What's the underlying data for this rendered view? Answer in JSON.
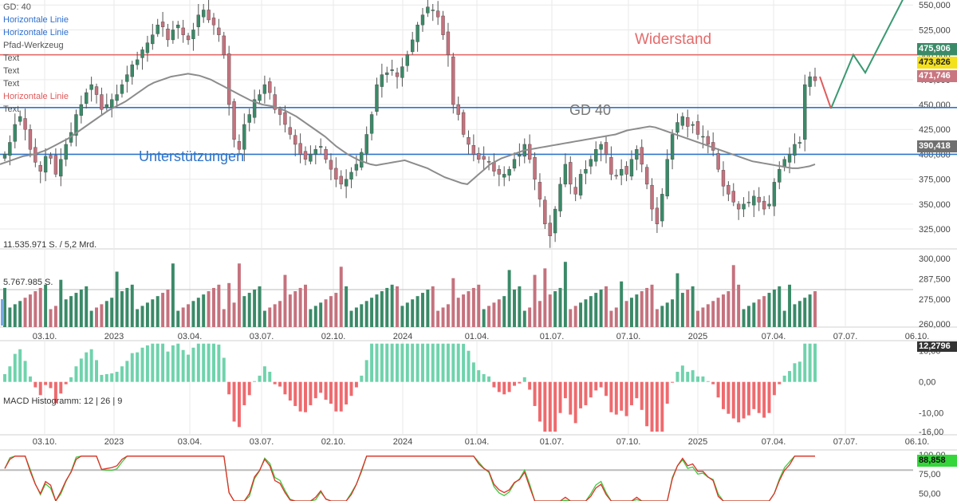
{
  "colors": {
    "up": "#3a8a68",
    "down": "#c5727e",
    "wick": "#555555",
    "support": "#2f74c9",
    "resistance": "#e46b6b",
    "ma": "#8c8c8c",
    "macd_pos": "#6fd3ac",
    "macd_neg": "#ee6a6e",
    "stoch_k": "#e0302a",
    "stoch_d": "#3ec93e",
    "path_red": "#e05c5c",
    "path_green": "#3a9a72",
    "grid": "#e9e9e9"
  },
  "legend": {
    "gd": "GD: 40",
    "items": [
      {
        "label": "Horizontale Linie",
        "color": "blue"
      },
      {
        "label": "Horizontale Linie",
        "color": "blue"
      },
      {
        "label": "Pfad-Werkzeug",
        "color": "gray"
      },
      {
        "label": "Text",
        "color": "gray"
      },
      {
        "label": "Text",
        "color": "gray"
      },
      {
        "label": "Text",
        "color": "gray"
      },
      {
        "label": "Horizontale Linie",
        "color": "red"
      },
      {
        "label": "Text",
        "color": "gray"
      }
    ]
  },
  "annotations": {
    "widerstand": "Widerstand",
    "unterstuetzungen": "Unterstützungen",
    "gd40": "GD 40"
  },
  "volume_panel": {
    "header": "11.535.971 S. / 5,2 Mrd.",
    "avg_label": "5.767.985 S."
  },
  "macd_panel": {
    "label": "MACD Histogramm: 12 | 26 | 9"
  },
  "badges": {
    "price_high": "475,906",
    "price_last": "473,826",
    "price_low": "471,746",
    "ma_value": "390,418",
    "macd_value": "12,2796",
    "stoch_value": "88,858"
  },
  "chart_data": [
    {
      "type": "candlestick",
      "y_ticks": [
        "550,000",
        "525,000",
        "500,000",
        "475,000",
        "450,000",
        "425,000",
        "400,000",
        "375,000",
        "350,000",
        "325,000"
      ],
      "ylim": [
        305,
        555
      ],
      "x_labels": [
        "03.10.",
        "2023",
        "03.04.",
        "03.07.",
        "02.10.",
        "2024",
        "01.04.",
        "01.07.",
        "07.10.",
        "2025",
        "07.04.",
        "07.07.",
        "06.10."
      ],
      "horizontal_lines": {
        "resistance": 500,
        "support_upper": 447,
        "support_lower": 400
      },
      "ohlc_closes": [
        400,
        412,
        430,
        438,
        425,
        405,
        392,
        383,
        398,
        396,
        380,
        395,
        410,
        422,
        440,
        450,
        462,
        470,
        460,
        445,
        450,
        455,
        460,
        470,
        480,
        490,
        495,
        505,
        512,
        520,
        530,
        528,
        515,
        525,
        530,
        520,
        515,
        525,
        540,
        545,
        535,
        530,
        520,
        500,
        450,
        415,
        405,
        430,
        440,
        455,
        460,
        470,
        462,
        445,
        440,
        430,
        420,
        410,
        400,
        395,
        400,
        405,
        408,
        395,
        385,
        375,
        370,
        375,
        382,
        390,
        402,
        420,
        440,
        470,
        480,
        482,
        485,
        478,
        488,
        500,
        515,
        530,
        540,
        548,
        545,
        538,
        520,
        500,
        450,
        440,
        420,
        410,
        400,
        395,
        395,
        392,
        383,
        380,
        380,
        385,
        395,
        400,
        410,
        395,
        375,
        355,
        330,
        318,
        345,
        370,
        390,
        370,
        360,
        380,
        385,
        395,
        405,
        410,
        400,
        380,
        378,
        385,
        380,
        395,
        405,
        390,
        370,
        345,
        330,
        360,
        395,
        420,
        432,
        438,
        428,
        430,
        420,
        418,
        410,
        404,
        385,
        368,
        360,
        352,
        345,
        350,
        352,
        358,
        352,
        345,
        350,
        372,
        385,
        395,
        400,
        410,
        412,
        470,
        478,
        474
      ],
      "ma40": [
        390,
        392,
        394,
        396,
        398,
        399,
        400,
        402,
        404,
        407,
        410,
        413,
        416,
        420,
        424,
        428,
        432,
        436,
        440,
        444,
        447,
        450,
        453,
        457,
        461,
        465,
        469,
        472,
        474,
        476,
        478,
        479,
        480,
        481,
        480,
        479,
        477,
        475,
        472,
        469,
        466,
        463,
        460,
        457,
        454,
        452,
        450,
        449,
        448,
        446,
        444,
        441,
        438,
        434,
        430,
        426,
        422,
        418,
        413,
        408,
        404,
        400,
        397,
        394,
        392,
        390,
        389,
        390,
        391,
        392,
        393,
        394,
        392,
        390,
        388,
        386,
        383,
        380,
        377,
        375,
        373,
        371,
        370,
        375,
        380,
        385,
        390,
        393,
        396,
        398,
        400,
        402,
        404,
        405,
        406,
        407,
        408,
        409,
        410,
        411,
        412,
        413,
        414,
        415,
        416,
        417,
        418,
        419,
        420,
        422,
        424,
        425,
        426,
        427,
        428,
        427,
        425,
        423,
        421,
        419,
        417,
        415,
        413,
        411,
        409,
        407,
        405,
        403,
        401,
        399,
        397,
        395,
        393,
        392,
        391,
        390,
        389,
        388,
        387,
        386,
        386,
        387,
        388,
        390
      ],
      "volume_ylim": [
        258,
        303
      ],
      "volume_ticks": [
        "300,000",
        "287,500",
        "275,000",
        "260,000"
      ],
      "macd_ticks": [
        "10,00",
        "0,00",
        "-10,00",
        "-16,00"
      ],
      "macd_ylim": [
        -17,
        13
      ],
      "stoch_ticks": [
        "100,00",
        "75,00",
        "50,00"
      ],
      "stoch_ylim": [
        40,
        105
      ]
    }
  ]
}
